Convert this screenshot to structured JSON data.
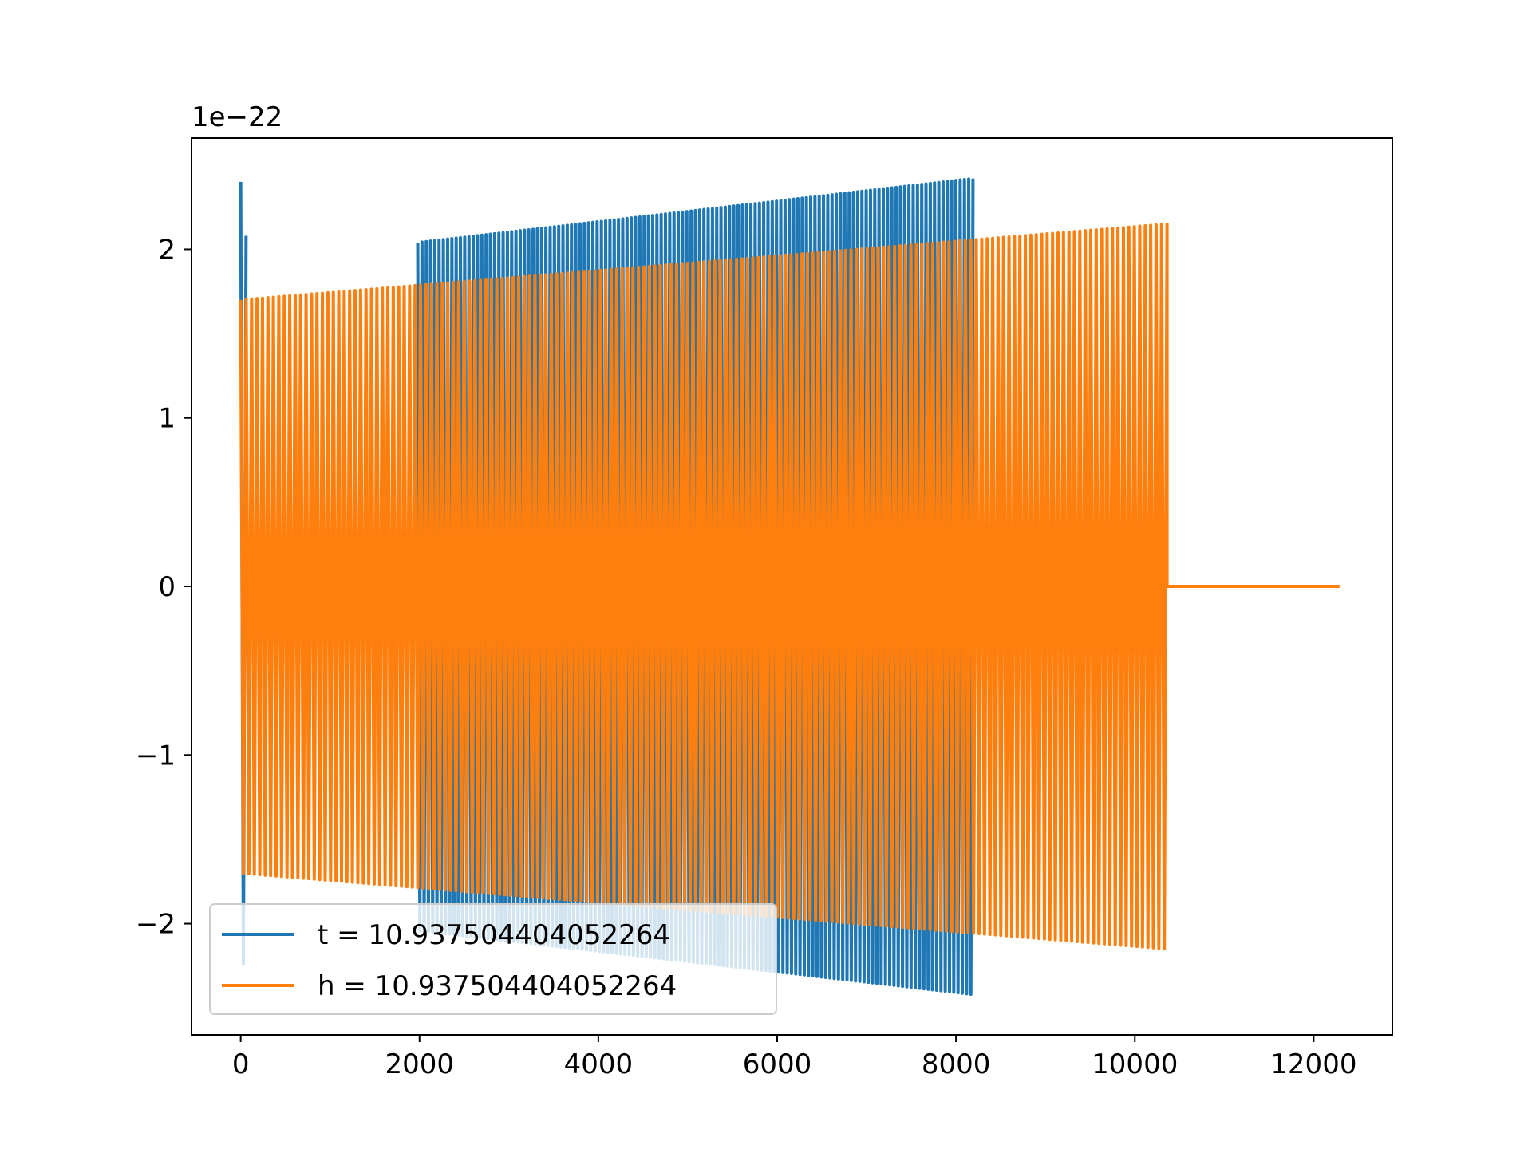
{
  "chart_data": {
    "type": "line",
    "title": "",
    "xlabel": "",
    "ylabel": "",
    "y_offset_label": "1e−22",
    "xlim": [
      -550,
      12880
    ],
    "ylim": [
      -2.66,
      2.66
    ],
    "x_ticks": [
      0,
      2000,
      4000,
      6000,
      8000,
      10000,
      12000
    ],
    "x_tick_labels": [
      "0",
      "2000",
      "4000",
      "6000",
      "8000",
      "10000",
      "12000"
    ],
    "y_ticks": [
      -2,
      -1,
      0,
      1,
      2
    ],
    "y_tick_labels": [
      "−2",
      "−1",
      "0",
      "1",
      "2"
    ],
    "grid": false,
    "legend_position": "lower-left",
    "series": [
      {
        "name": "t = 10.937504404052264",
        "color": "#1f77b4",
        "segments": [
          {
            "x_start": 0,
            "x_end": 60,
            "amp_start": 2.4,
            "amp_end": 2.08,
            "cycles": 1
          },
          {
            "x_start": 1980,
            "x_end": 8190,
            "amp_start": 2.04,
            "amp_end": 2.42,
            "cycles": 130
          }
        ],
        "flat_after": null
      },
      {
        "name": "h = 10.937504404052264",
        "color": "#ff7f0e",
        "segments": [
          {
            "x_start": 0,
            "x_end": 10360,
            "amp_start": 1.7,
            "amp_end": 2.15,
            "cycles": 170
          }
        ],
        "flat_after": {
          "x_start": 10360,
          "x_end": 12290,
          "y": 0
        }
      }
    ]
  }
}
